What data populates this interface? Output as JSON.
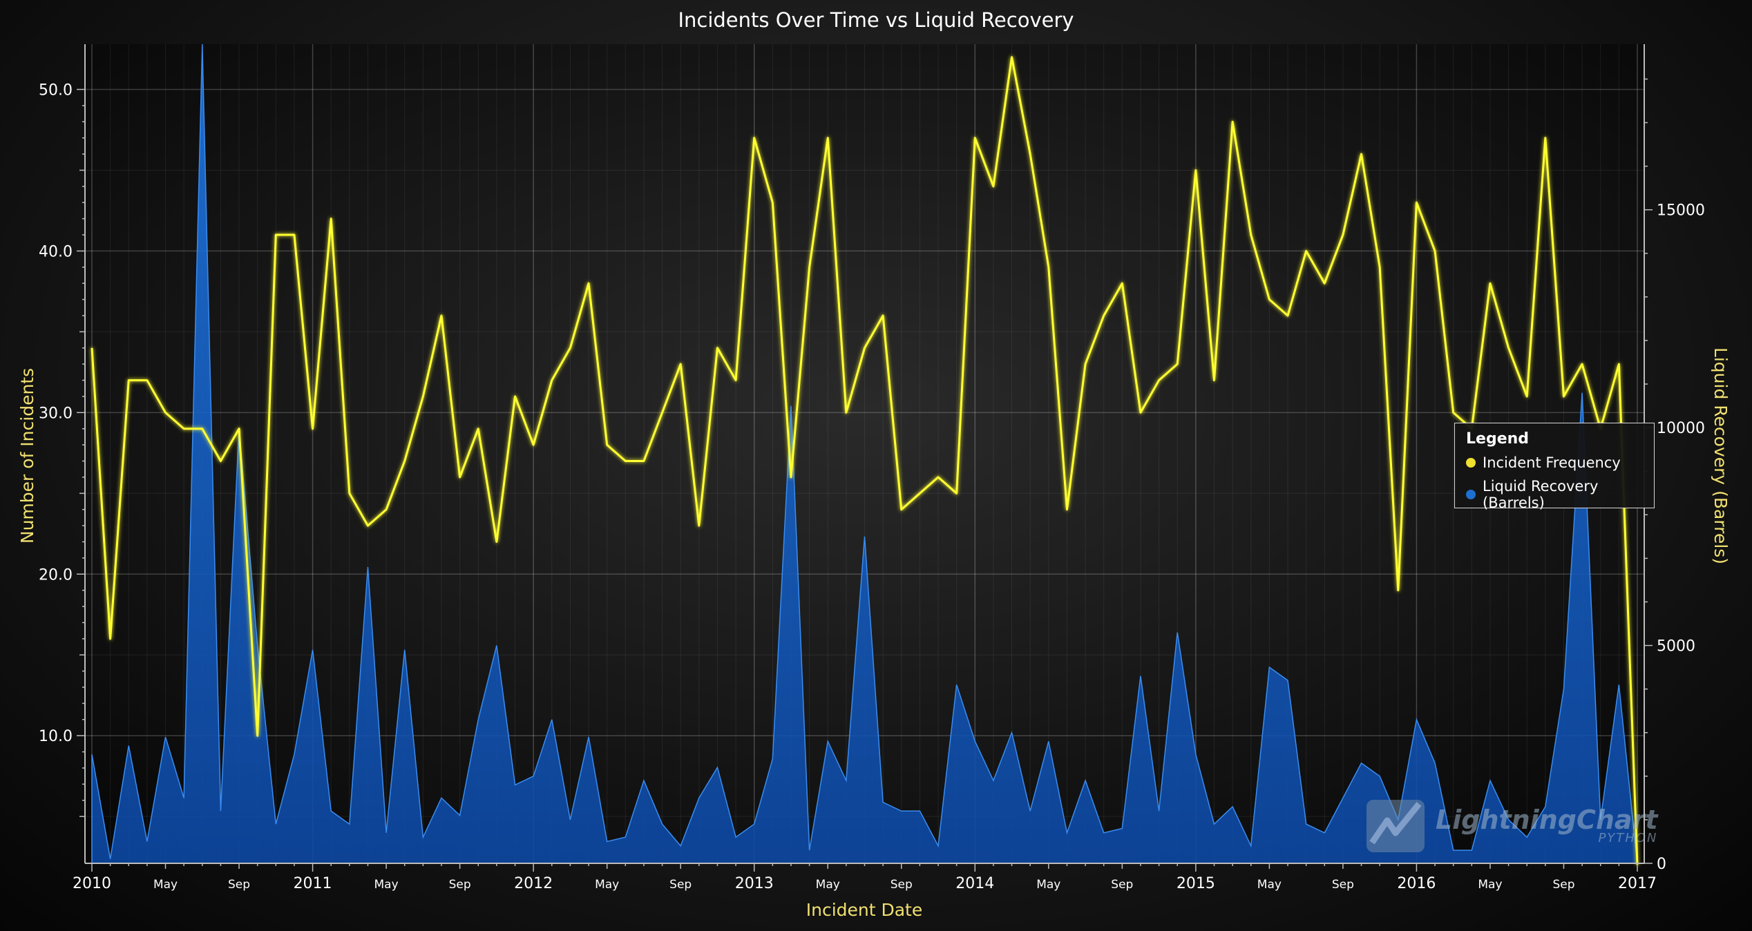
{
  "chart_data": {
    "type": "line",
    "title": "Incidents Over Time vs Liquid Recovery",
    "xlabel": "Incident Date",
    "ylabel": "Number of Incidents",
    "y2label": "Liquid Recovery (Barrels)",
    "ylim": [
      2.1,
      52.8
    ],
    "y2lim": [
      0,
      18800
    ],
    "yticks": [
      "10.0",
      "20.0",
      "30.0",
      "40.0",
      "50.0"
    ],
    "y2ticks": [
      "0",
      "5000",
      "10000",
      "15000"
    ],
    "xlim": [
      0,
      84
    ],
    "x_start": "2010-01",
    "x_step": "1 month",
    "xticks_major": [
      "2010",
      "2011",
      "2012",
      "2013",
      "2014",
      "2015",
      "2016",
      "2017"
    ],
    "xticks_minor": [
      "May",
      "Sep"
    ],
    "grid": true,
    "legend_position": "right",
    "series": [
      {
        "name": "Incident Frequency",
        "axis": "left",
        "color": "#ffff00",
        "values": [
          34,
          16,
          32,
          32,
          30,
          29,
          29,
          27,
          29,
          10,
          41,
          41,
          29,
          42,
          25,
          23,
          24,
          27,
          31,
          36,
          26,
          29,
          22,
          31,
          28,
          32,
          34,
          38,
          28,
          27,
          27,
          30,
          33,
          23,
          34,
          32,
          47,
          43,
          26,
          39,
          47,
          30,
          34,
          36,
          24,
          25,
          26,
          25,
          47,
          44,
          52,
          46,
          39,
          24,
          33,
          36,
          38,
          30,
          32,
          33,
          45,
          32,
          48,
          41,
          37,
          36,
          40,
          38,
          41,
          46,
          39,
          19,
          43,
          40,
          30,
          29,
          38,
          34,
          31,
          47,
          31,
          33,
          29,
          33,
          2
        ]
      },
      {
        "name": "Liquid Recovery (Barrels)",
        "axis": "right",
        "color": "#1565c0",
        "values": [
          2500,
          100,
          2700,
          500,
          2900,
          1500,
          18800,
          1200,
          10000,
          5000,
          900,
          2500,
          4900,
          1200,
          900,
          6800,
          700,
          4900,
          600,
          1500,
          1100,
          3300,
          5000,
          1800,
          2000,
          3300,
          1000,
          2900,
          500,
          600,
          1900,
          900,
          400,
          1500,
          2200,
          600,
          900,
          2400,
          10500,
          300,
          2800,
          1900,
          7500,
          1400,
          1200,
          1200,
          400,
          4100,
          2800,
          1900,
          3000,
          1200,
          2800,
          700,
          1900,
          700,
          800,
          4300,
          1200,
          5300,
          2500,
          900,
          1300,
          400,
          4500,
          4200,
          900,
          700,
          1500,
          2300,
          2000,
          1000,
          3300,
          2300,
          300,
          300,
          1900,
          1000,
          600,
          1300,
          4000,
          10800,
          1000,
          4100,
          0
        ]
      }
    ]
  },
  "legend": {
    "title": "Legend",
    "items": [
      {
        "label": "Incident Frequency",
        "color": "#f0e030"
      },
      {
        "label": "Liquid Recovery (Barrels)",
        "color": "#1e6fd0"
      }
    ]
  },
  "watermark": {
    "brand": "LightningChart",
    "sub": "PYTHON"
  }
}
